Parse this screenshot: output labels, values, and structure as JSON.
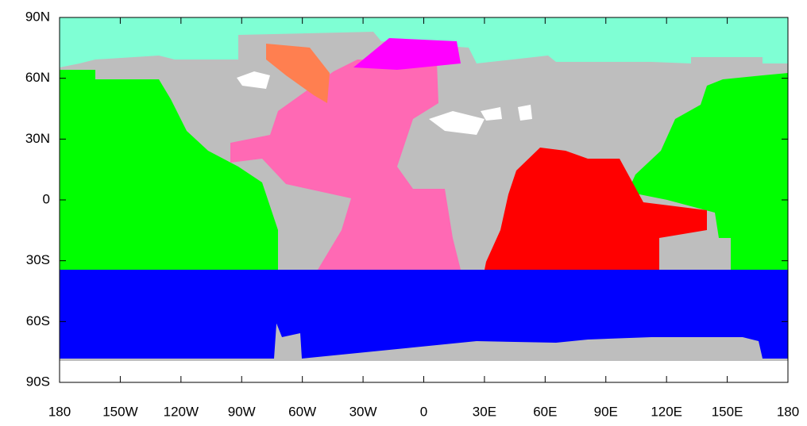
{
  "map": {
    "x_ticks": [
      {
        "value": -180,
        "label": "180"
      },
      {
        "value": -150,
        "label": "150W"
      },
      {
        "value": -120,
        "label": "120W"
      },
      {
        "value": -90,
        "label": "90W"
      },
      {
        "value": -60,
        "label": "60W"
      },
      {
        "value": -30,
        "label": "30W"
      },
      0,
      {
        "value": 30,
        "label": "30E"
      },
      {
        "value": 60,
        "label": "60E"
      },
      {
        "value": 90,
        "label": "90E"
      },
      {
        "value": 120,
        "label": "120E"
      },
      {
        "value": 150,
        "label": "150E"
      },
      {
        "value": 180,
        "label": "180"
      }
    ],
    "y_ticks": [
      {
        "value": 90,
        "label": "90N"
      },
      {
        "value": 60,
        "label": "60N"
      },
      {
        "value": 30,
        "label": "30N"
      },
      0,
      {
        "value": -30,
        "label": "30S"
      },
      {
        "value": -60,
        "label": "60S"
      },
      {
        "value": -90,
        "label": "90S"
      }
    ]
  }
}
